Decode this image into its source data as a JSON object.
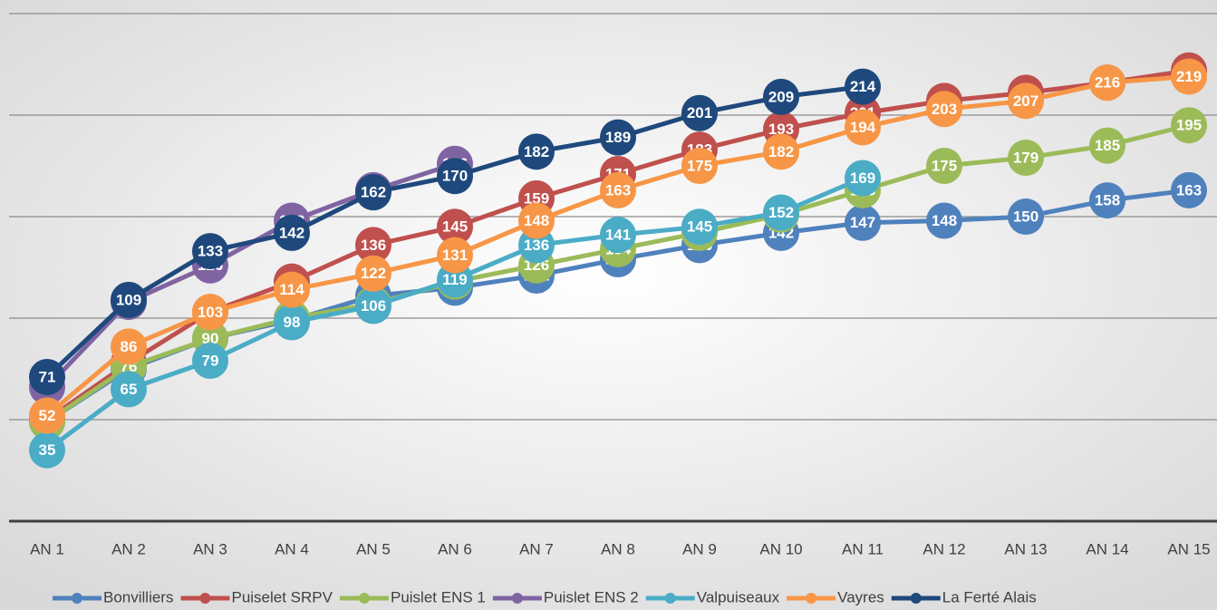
{
  "chart_data": {
    "type": "line",
    "categories": [
      "AN 1",
      "AN 2",
      "AN 3",
      "AN 4",
      "AN 5",
      "AN 6",
      "AN 7",
      "AN 8",
      "AN 9",
      "AN 10",
      "AN 11",
      "AN 12",
      "AN 13",
      "AN 14",
      "AN 15"
    ],
    "ylim": [
      0,
      250
    ],
    "yticks": [
      0,
      50,
      100,
      150,
      200,
      250
    ],
    "grid": true,
    "legend": "bottom",
    "series": [
      {
        "name": "Bonvilliers",
        "color": "#4f81bd",
        "values": [
          49,
          75,
          90,
          99,
          111,
          115,
          121,
          129,
          136,
          142,
          147,
          148,
          150,
          158,
          163
        ]
      },
      {
        "name": "Puiselet SRPV",
        "color": "#c0504d",
        "values": [
          50,
          78,
          103,
          118,
          136,
          145,
          159,
          171,
          183,
          193,
          201,
          207,
          211,
          216,
          222
        ]
      },
      {
        "name": "Puislet ENS 1",
        "color": "#9bbb59",
        "values": [
          49,
          76,
          90,
          100,
          107,
          118,
          126,
          134,
          142,
          151,
          163,
          175,
          179,
          185,
          195
        ]
      },
      {
        "name": "Puislet ENS 2",
        "color": "#8064a2",
        "values": [
          66,
          108,
          126,
          148,
          163,
          176,
          null,
          null,
          null,
          null,
          null,
          null,
          null,
          null,
          null
        ]
      },
      {
        "name": "Valpuiseaux",
        "color": "#4bacc6",
        "values": [
          35,
          65,
          79,
          98,
          106,
          119,
          136,
          141,
          145,
          152,
          169,
          null,
          null,
          null,
          null
        ]
      },
      {
        "name": "Vayres",
        "color": "#f79646",
        "values": [
          52,
          86,
          103,
          114,
          122,
          131,
          148,
          163,
          175,
          182,
          194,
          203,
          207,
          216,
          219
        ]
      },
      {
        "name": "La Ferté Alais",
        "color": "#1f497d",
        "values": [
          71,
          109,
          133,
          142,
          162,
          170,
          182,
          189,
          201,
          209,
          214,
          null,
          null,
          null,
          null
        ]
      }
    ]
  }
}
